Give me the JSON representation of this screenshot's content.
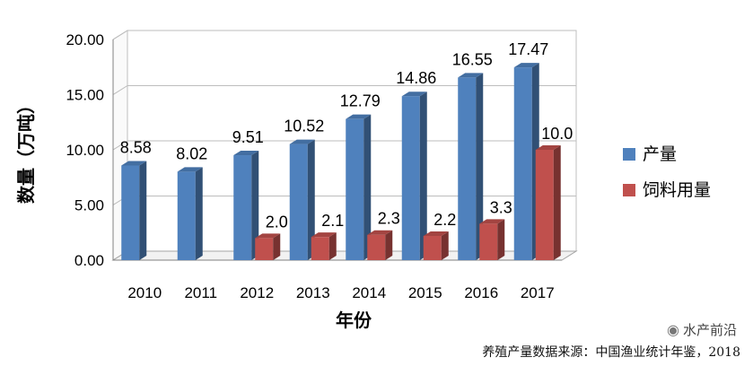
{
  "chart_data": {
    "type": "bar",
    "categories": [
      "2010",
      "2011",
      "2012",
      "2013",
      "2014",
      "2015",
      "2016",
      "2017"
    ],
    "series": [
      {
        "name": "产量",
        "color": "#4F81BD",
        "values": [
          8.58,
          8.02,
          9.51,
          10.52,
          12.79,
          14.86,
          16.55,
          17.47
        ],
        "labels": [
          "8.58",
          "8.02",
          "9.51",
          "10.52",
          "12.79",
          "14.86",
          "16.55",
          "17.47"
        ]
      },
      {
        "name": "饲料用量",
        "color": "#C0504D",
        "values": [
          null,
          null,
          2.0,
          2.1,
          2.3,
          2.2,
          3.3,
          10.0
        ],
        "labels": [
          null,
          null,
          "2.0",
          "2.1",
          "2.3",
          "2.2",
          "3.3",
          "10.0"
        ]
      }
    ],
    "ylim": [
      0,
      20
    ],
    "yticks": [
      "0.00",
      "5.00",
      "10.00",
      "15.00",
      "20.00"
    ],
    "ytick_values": [
      0,
      5,
      10,
      15,
      20
    ],
    "ylabel": "数量（万吨）",
    "xlabel": "年份",
    "grid": true,
    "legend": "right",
    "style": "3d-bar"
  },
  "source": "养殖产量数据来源：中国渔业统计年鉴，2018",
  "watermark": "水产前沿",
  "watermark_icon": "wechat-icon"
}
